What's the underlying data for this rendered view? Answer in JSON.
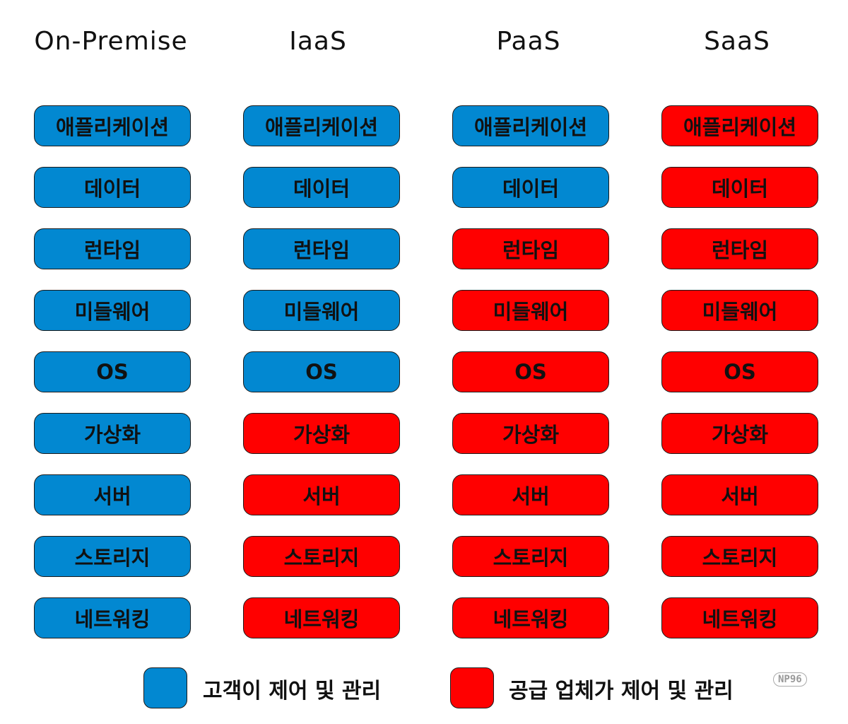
{
  "colors": {
    "customer": "#0288D1",
    "provider": "#FF0000"
  },
  "columns": [
    {
      "header": "On-Premise",
      "managed": [
        "customer",
        "customer",
        "customer",
        "customer",
        "customer",
        "customer",
        "customer",
        "customer",
        "customer"
      ]
    },
    {
      "header": "IaaS",
      "managed": [
        "customer",
        "customer",
        "customer",
        "customer",
        "customer",
        "provider",
        "provider",
        "provider",
        "provider"
      ]
    },
    {
      "header": "PaaS",
      "managed": [
        "customer",
        "customer",
        "provider",
        "provider",
        "provider",
        "provider",
        "provider",
        "provider",
        "provider"
      ]
    },
    {
      "header": "SaaS",
      "managed": [
        "provider",
        "provider",
        "provider",
        "provider",
        "provider",
        "provider",
        "provider",
        "provider",
        "provider"
      ]
    }
  ],
  "layers": [
    "애플리케이션",
    "데이터",
    "런타임",
    "미들웨어",
    "OS",
    "가상화",
    "서버",
    "스토리지",
    "네트워킹"
  ],
  "legend": {
    "customer_label": "고객이 제어 및 관리",
    "provider_label": "공급 업체가 제어 및 관리"
  },
  "watermark": "NP96"
}
